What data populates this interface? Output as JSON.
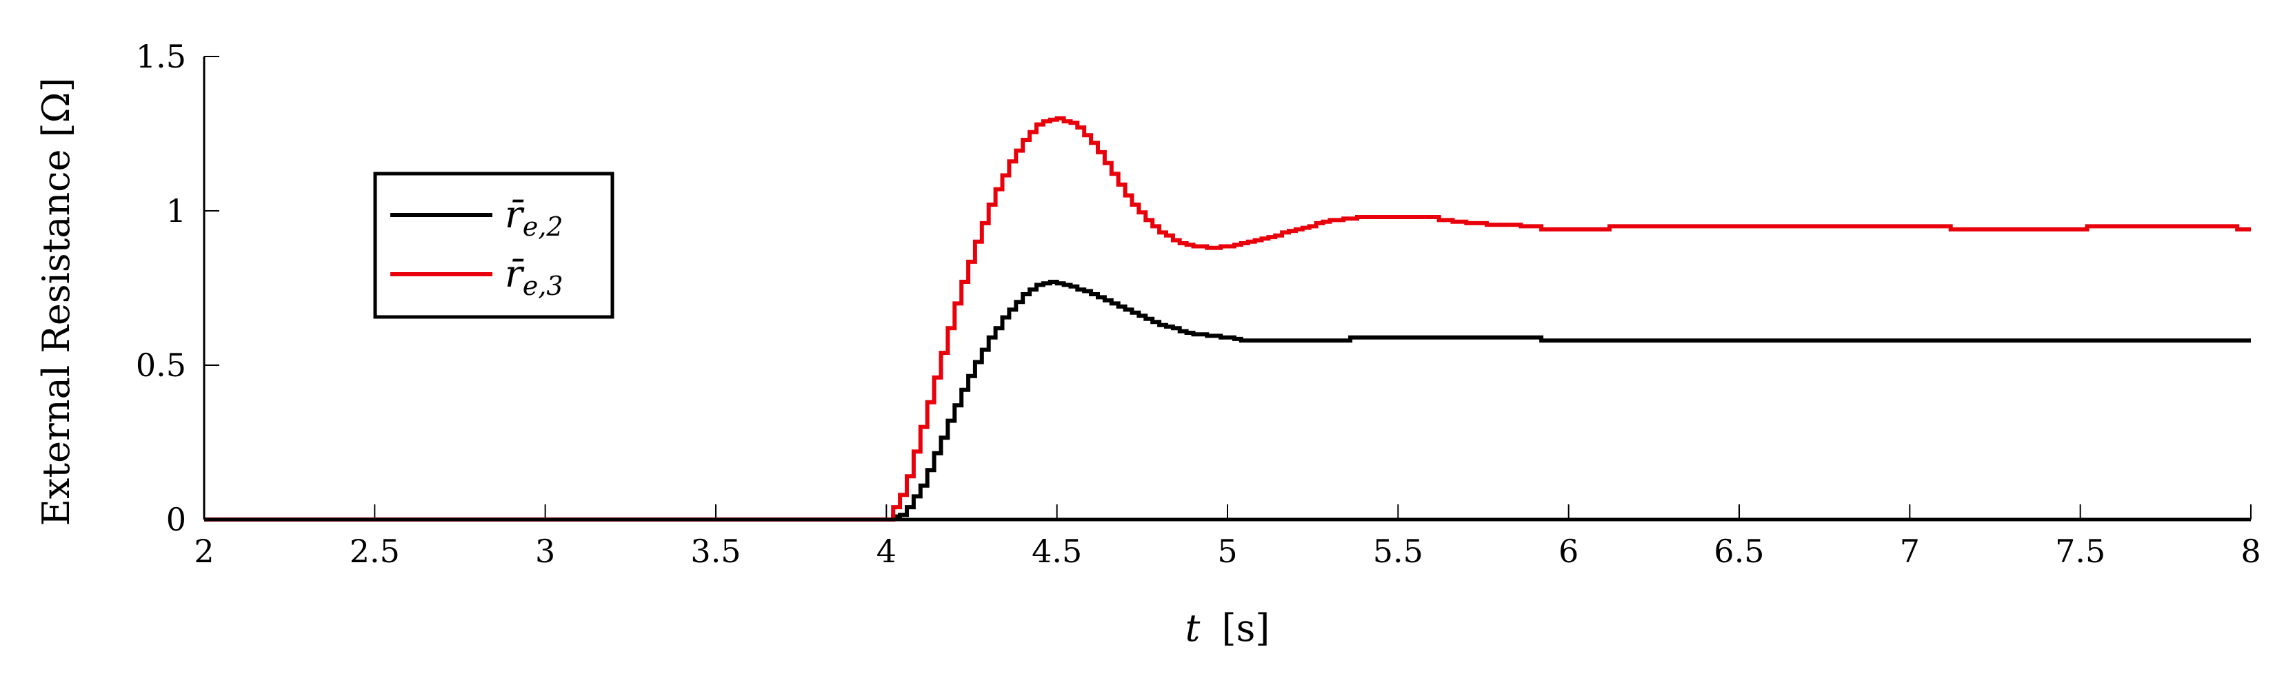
{
  "chart_data": {
    "type": "line",
    "xlabel_var": "t",
    "xlabel_unit": "[s]",
    "ylabel": "External Resistance [Ω]",
    "xlim": [
      2,
      8
    ],
    "ylim": [
      0,
      1.5
    ],
    "x_ticks": [
      "2",
      "2.5",
      "3",
      "3.5",
      "4",
      "4.5",
      "5",
      "5.5",
      "6",
      "6.5",
      "7",
      "7.5",
      "8"
    ],
    "x_tick_values": [
      2,
      2.5,
      3,
      3.5,
      4,
      4.5,
      5,
      5.5,
      6,
      6.5,
      7,
      7.5,
      8
    ],
    "y_ticks": [
      "0",
      "0.5",
      "1",
      "1.5"
    ],
    "y_tick_values": [
      0,
      0.5,
      1,
      1.5
    ],
    "grid": false,
    "legend_position": "upper-left",
    "series": [
      {
        "name": "r̄e,2",
        "name_base": "r̄",
        "name_sub": "e,2",
        "color": "#000000",
        "points": [
          [
            2.0,
            0.0
          ],
          [
            4.0,
            0.0
          ],
          [
            4.05,
            0.02
          ],
          [
            4.1,
            0.11
          ],
          [
            4.15,
            0.24
          ],
          [
            4.2,
            0.37
          ],
          [
            4.25,
            0.49
          ],
          [
            4.3,
            0.59
          ],
          [
            4.35,
            0.67
          ],
          [
            4.4,
            0.73
          ],
          [
            4.45,
            0.765
          ],
          [
            4.48,
            0.77
          ],
          [
            4.52,
            0.76
          ],
          [
            4.6,
            0.73
          ],
          [
            4.7,
            0.68
          ],
          [
            4.8,
            0.63
          ],
          [
            4.9,
            0.6
          ],
          [
            5.0,
            0.59
          ],
          [
            5.05,
            0.58
          ],
          [
            5.35,
            0.58
          ],
          [
            5.35,
            0.59
          ],
          [
            5.9,
            0.59
          ],
          [
            5.9,
            0.58
          ],
          [
            8.0,
            0.58
          ]
        ]
      },
      {
        "name": "r̄e,3",
        "name_base": "r̄",
        "name_sub": "e,3",
        "color": "#e8000b",
        "points": [
          [
            2.0,
            0.0
          ],
          [
            4.0,
            0.0
          ],
          [
            4.05,
            0.1
          ],
          [
            4.1,
            0.3
          ],
          [
            4.15,
            0.5
          ],
          [
            4.2,
            0.7
          ],
          [
            4.25,
            0.87
          ],
          [
            4.3,
            1.02
          ],
          [
            4.35,
            1.14
          ],
          [
            4.4,
            1.23
          ],
          [
            4.45,
            1.29
          ],
          [
            4.5,
            1.3
          ],
          [
            4.55,
            1.28
          ],
          [
            4.6,
            1.22
          ],
          [
            4.65,
            1.14
          ],
          [
            4.7,
            1.05
          ],
          [
            4.75,
            0.98
          ],
          [
            4.8,
            0.93
          ],
          [
            4.85,
            0.9
          ],
          [
            4.9,
            0.885
          ],
          [
            4.95,
            0.88
          ],
          [
            5.02,
            0.89
          ],
          [
            5.1,
            0.91
          ],
          [
            5.2,
            0.94
          ],
          [
            5.3,
            0.97
          ],
          [
            5.4,
            0.98
          ],
          [
            5.6,
            0.98
          ],
          [
            5.62,
            0.97
          ],
          [
            5.7,
            0.96
          ],
          [
            5.9,
            0.95
          ],
          [
            5.9,
            0.94
          ],
          [
            6.1,
            0.94
          ],
          [
            6.12,
            0.95
          ],
          [
            7.1,
            0.95
          ],
          [
            7.1,
            0.94
          ],
          [
            7.5,
            0.94
          ],
          [
            7.5,
            0.95
          ],
          [
            7.95,
            0.95
          ],
          [
            7.95,
            0.94
          ],
          [
            8.0,
            0.94
          ]
        ]
      }
    ]
  }
}
